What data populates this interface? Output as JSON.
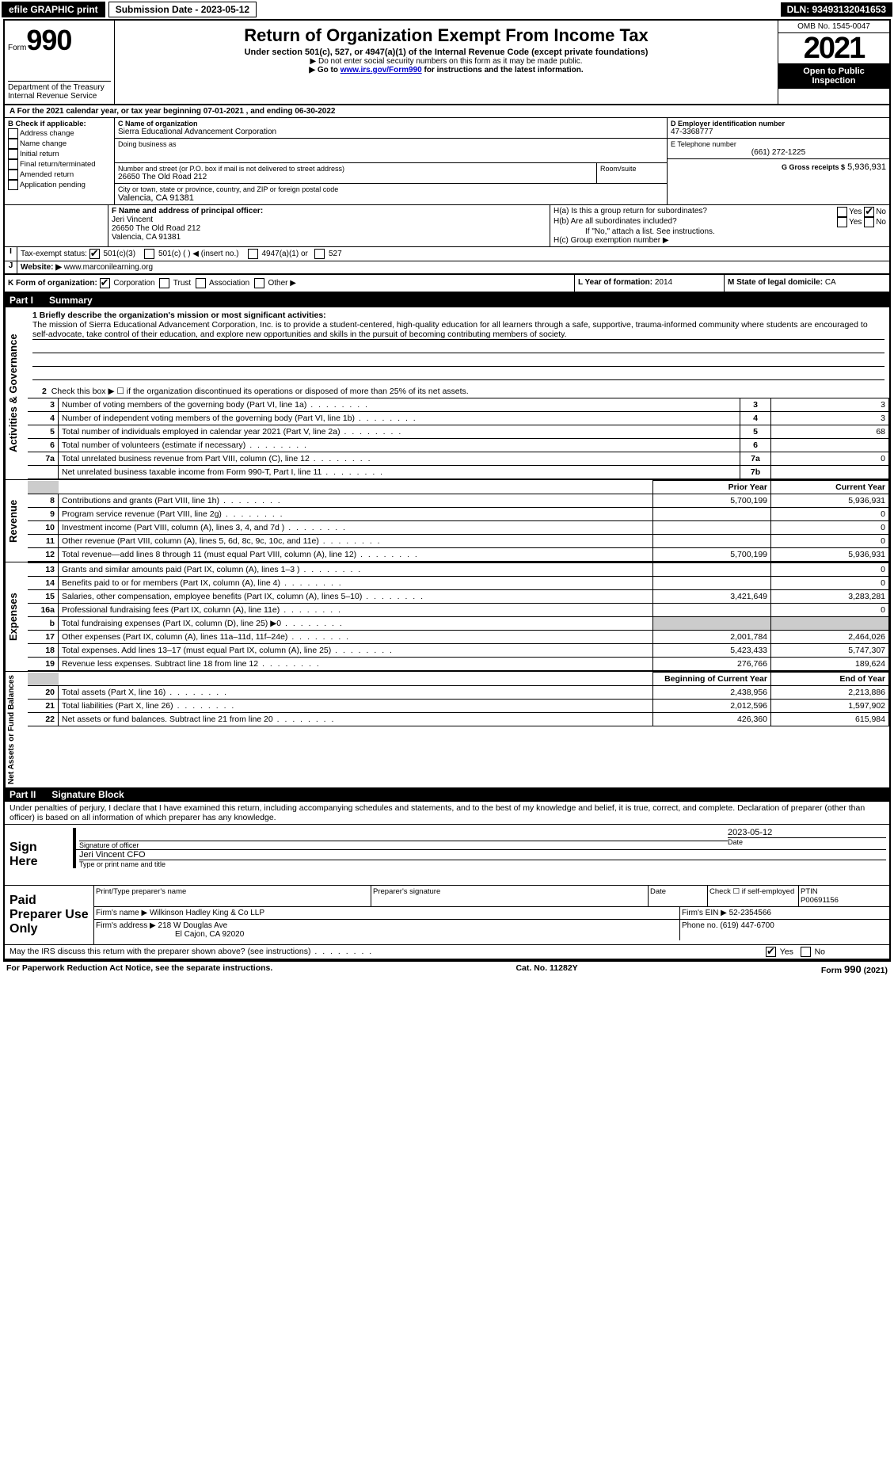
{
  "topbar": {
    "efile": "efile GRAPHIC print",
    "submission_label": "Submission Date - 2023-05-12",
    "dln": "DLN: 93493132041653"
  },
  "header": {
    "form_label": "Form",
    "form_number": "990",
    "dept": "Department of the Treasury",
    "irs": "Internal Revenue Service",
    "title": "Return of Organization Exempt From Income Tax",
    "subtitle": "Under section 501(c), 527, or 4947(a)(1) of the Internal Revenue Code (except private foundations)",
    "note1": "▶ Do not enter social security numbers on this form as it may be made public.",
    "note2_pre": "▶ Go to ",
    "note2_link": "www.irs.gov/Form990",
    "note2_post": " for instructions and the latest information.",
    "omb": "OMB No. 1545-0047",
    "year": "2021",
    "open": "Open to Public Inspection"
  },
  "section_a": {
    "text": "A For the 2021 calendar year, or tax year beginning 07-01-2021    , and ending 06-30-2022"
  },
  "section_b": {
    "label": "B Check if applicable:",
    "opts": [
      "Address change",
      "Name change",
      "Initial return",
      "Final return/terminated",
      "Amended return",
      "Application pending"
    ]
  },
  "section_c": {
    "name_label": "C Name of organization",
    "name": "Sierra Educational Advancement Corporation",
    "dba_label": "Doing business as",
    "addr_label": "Number and street (or P.O. box if mail is not delivered to street address)",
    "room_label": "Room/suite",
    "addr": "26650 The Old Road 212",
    "city_label": "City or town, state or province, country, and ZIP or foreign postal code",
    "city": "Valencia, CA  91381"
  },
  "section_d": {
    "label": "D Employer identification number",
    "value": "47-3368777"
  },
  "section_e": {
    "label": "E Telephone number",
    "value": "(661) 272-1225"
  },
  "section_g": {
    "label": "G Gross receipts $",
    "value": "5,936,931"
  },
  "section_f": {
    "label": "F  Name and address of principal officer:",
    "name": "Jeri Vincent",
    "addr1": "26650 The Old Road 212",
    "addr2": "Valencia, CA  91381"
  },
  "section_h": {
    "ha": "H(a)  Is this a group return for subordinates?",
    "hb": "H(b)  Are all subordinates included?",
    "hb_note": "If \"No,\" attach a list. See instructions.",
    "hc": "H(c)  Group exemption number ▶",
    "yes": "Yes",
    "no": "No"
  },
  "section_i": {
    "label": "Tax-exempt status:",
    "opts": [
      "501(c)(3)",
      "501(c) (  ) ◀ (insert no.)",
      "4947(a)(1) or",
      "527"
    ]
  },
  "section_j": {
    "label": "Website: ▶",
    "value": "www.marconilearning.org"
  },
  "section_k": {
    "label": "K Form of organization:",
    "opts": [
      "Corporation",
      "Trust",
      "Association",
      "Other ▶"
    ]
  },
  "section_l": {
    "label": "L Year of formation:",
    "value": "2014"
  },
  "section_m": {
    "label": "M State of legal domicile:",
    "value": "CA"
  },
  "part1": {
    "label": "Part I",
    "title": "Summary",
    "mission_label": "1  Briefly describe the organization's mission or most significant activities:",
    "mission": "The mission of Sierra Educational Advancement Corporation, Inc. is to provide a student-centered, high-quality education for all learners through a safe, supportive, trauma-informed community where students are encouraged to self-advocate, take control of their education, and explore new opportunities and skills in the pursuit of becoming contributing members of society.",
    "line2": "Check this box ▶ ☐  if the organization discontinued its operations or disposed of more than 25% of its net assets.",
    "tab_activities": "Activities & Governance",
    "tab_revenue": "Revenue",
    "tab_expenses": "Expenses",
    "tab_netassets": "Net Assets or Fund Balances",
    "rows_gov": [
      {
        "n": "3",
        "label": "Number of voting members of the governing body (Part VI, line 1a)",
        "box": "3",
        "val": "3"
      },
      {
        "n": "4",
        "label": "Number of independent voting members of the governing body (Part VI, line 1b)",
        "box": "4",
        "val": "3"
      },
      {
        "n": "5",
        "label": "Total number of individuals employed in calendar year 2021 (Part V, line 2a)",
        "box": "5",
        "val": "68"
      },
      {
        "n": "6",
        "label": "Total number of volunteers (estimate if necessary)",
        "box": "6",
        "val": ""
      },
      {
        "n": "7a",
        "label": "Total unrelated business revenue from Part VIII, column (C), line 12",
        "box": "7a",
        "val": "0"
      },
      {
        "n": "",
        "label": "Net unrelated business taxable income from Form 990-T, Part I, line 11",
        "box": "7b",
        "val": ""
      }
    ],
    "col_prior": "Prior Year",
    "col_current": "Current Year",
    "rows_rev": [
      {
        "n": "8",
        "label": "Contributions and grants (Part VIII, line 1h)",
        "prior": "5,700,199",
        "curr": "5,936,931"
      },
      {
        "n": "9",
        "label": "Program service revenue (Part VIII, line 2g)",
        "prior": "",
        "curr": "0"
      },
      {
        "n": "10",
        "label": "Investment income (Part VIII, column (A), lines 3, 4, and 7d )",
        "prior": "",
        "curr": "0"
      },
      {
        "n": "11",
        "label": "Other revenue (Part VIII, column (A), lines 5, 6d, 8c, 9c, 10c, and 11e)",
        "prior": "",
        "curr": "0"
      },
      {
        "n": "12",
        "label": "Total revenue—add lines 8 through 11 (must equal Part VIII, column (A), line 12)",
        "prior": "5,700,199",
        "curr": "5,936,931"
      }
    ],
    "rows_exp": [
      {
        "n": "13",
        "label": "Grants and similar amounts paid (Part IX, column (A), lines 1–3 )",
        "prior": "",
        "curr": "0"
      },
      {
        "n": "14",
        "label": "Benefits paid to or for members (Part IX, column (A), line 4)",
        "prior": "",
        "curr": "0"
      },
      {
        "n": "15",
        "label": "Salaries, other compensation, employee benefits (Part IX, column (A), lines 5–10)",
        "prior": "3,421,649",
        "curr": "3,283,281"
      },
      {
        "n": "16a",
        "label": "Professional fundraising fees (Part IX, column (A), line 11e)",
        "prior": "",
        "curr": "0"
      },
      {
        "n": "b",
        "label": "Total fundraising expenses (Part IX, column (D), line 25) ▶0",
        "prior": "GRAY",
        "curr": "GRAY"
      },
      {
        "n": "17",
        "label": "Other expenses (Part IX, column (A), lines 11a–11d, 11f–24e)",
        "prior": "2,001,784",
        "curr": "2,464,026"
      },
      {
        "n": "18",
        "label": "Total expenses. Add lines 13–17 (must equal Part IX, column (A), line 25)",
        "prior": "5,423,433",
        "curr": "5,747,307"
      },
      {
        "n": "19",
        "label": "Revenue less expenses. Subtract line 18 from line 12",
        "prior": "276,766",
        "curr": "189,624"
      }
    ],
    "col_begin": "Beginning of Current Year",
    "col_end": "End of Year",
    "rows_net": [
      {
        "n": "20",
        "label": "Total assets (Part X, line 16)",
        "prior": "2,438,956",
        "curr": "2,213,886"
      },
      {
        "n": "21",
        "label": "Total liabilities (Part X, line 26)",
        "prior": "2,012,596",
        "curr": "1,597,902"
      },
      {
        "n": "22",
        "label": "Net assets or fund balances. Subtract line 21 from line 20",
        "prior": "426,360",
        "curr": "615,984"
      }
    ]
  },
  "part2": {
    "label": "Part II",
    "title": "Signature Block",
    "declaration": "Under penalties of perjury, I declare that I have examined this return, including accompanying schedules and statements, and to the best of my knowledge and belief, it is true, correct, and complete. Declaration of preparer (other than officer) is based on all information of which preparer has any knowledge.",
    "sign_here": "Sign Here",
    "sig_officer": "Signature of officer",
    "sig_date": "Date",
    "sig_date_val": "2023-05-12",
    "officer_name": "Jeri Vincent CFO",
    "type_name": "Type or print name and title",
    "paid_prep": "Paid Preparer Use Only",
    "prep_name_label": "Print/Type preparer's name",
    "prep_sig_label": "Preparer's signature",
    "date_label": "Date",
    "check_if": "Check ☐ if self-employed",
    "ptin_label": "PTIN",
    "ptin": "P00691156",
    "firm_name_label": "Firm's name    ▶",
    "firm_name": "Wilkinson Hadley King & Co LLP",
    "firm_ein_label": "Firm's EIN ▶",
    "firm_ein": "52-2354566",
    "firm_addr_label": "Firm's address ▶",
    "firm_addr1": "218 W Douglas Ave",
    "firm_addr2": "El Cajon, CA  92020",
    "phone_label": "Phone no.",
    "phone": "(619) 447-6700",
    "may_irs": "May the IRS discuss this return with the preparer shown above? (see instructions)"
  },
  "footer": {
    "left": "For Paperwork Reduction Act Notice, see the separate instructions.",
    "mid": "Cat. No. 11282Y",
    "right": "Form 990 (2021)"
  }
}
